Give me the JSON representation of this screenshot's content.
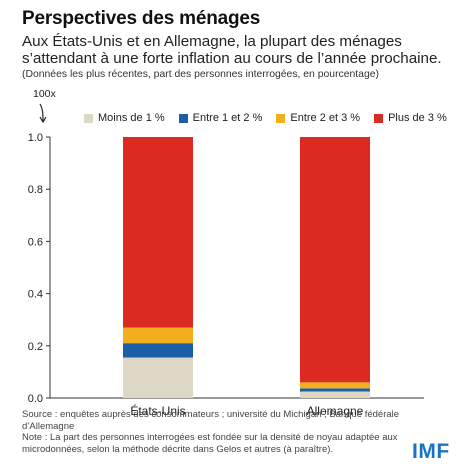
{
  "header": {
    "title": "Perspectives des ménages",
    "subtitle": "Aux États-Unis et en Allemagne, la plupart des ménages s’attendant à une forte inflation au cours de l’année prochaine.",
    "note": "(Données les plus récentes, part des personnes interrogées, en pourcentage)",
    "unit": "100x"
  },
  "chart_data": {
    "type": "bar",
    "stacked": true,
    "categories": [
      "États-Unis",
      "Allemagne"
    ],
    "series": [
      {
        "name": "Moins de 1 %",
        "color": "#dcd8c5",
        "values": [
          0.155,
          0.025
        ]
      },
      {
        "name": "Entre 1 et 2 %",
        "color": "#1a5fa6",
        "values": [
          0.055,
          0.012
        ]
      },
      {
        "name": "Entre 2 et 3 %",
        "color": "#f2ae1c",
        "values": [
          0.06,
          0.023
        ]
      },
      {
        "name": "Plus de 3 %",
        "color": "#dc2a23",
        "values": [
          0.73,
          0.94
        ]
      }
    ],
    "ylim": [
      0,
      1.0
    ],
    "yticks": [
      "0.0",
      "0.2",
      "0.4",
      "0.6",
      "0.8",
      "1.0"
    ],
    "grid": false,
    "legend_position": "top"
  },
  "footer": {
    "source": "Source : enquêtes auprès des consommateurs ; université du Michigan ; Banque fédérale d’Allemagne",
    "note": "Note : La part des personnes interrogées est fondée sur la densité de noyau adaptée aux microdonnées, selon la méthode décrite dans Gelos et autres (à paraître)."
  },
  "logo_text": "IMF"
}
